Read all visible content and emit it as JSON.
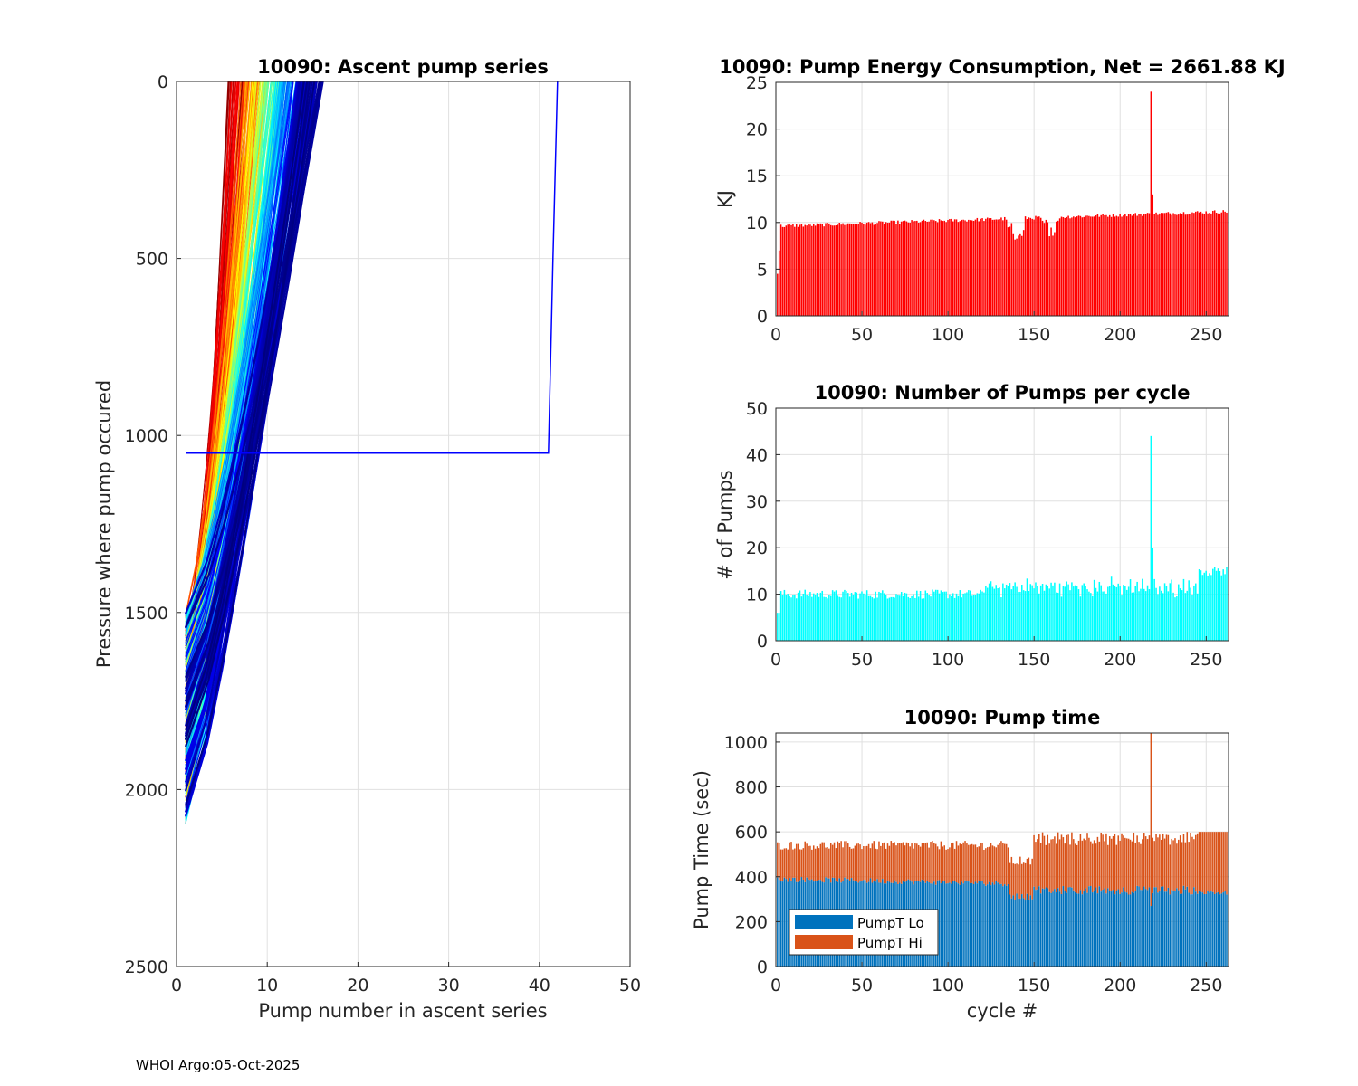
{
  "chart_data": [
    {
      "id": "ascent",
      "type": "line",
      "title": "10090: Ascent pump series",
      "xlabel": "Pump number in ascent series",
      "ylabel": "Pressure where pump occured",
      "xlim": [
        0,
        50
      ],
      "ylim": [
        0,
        2500
      ],
      "y_reversed": true,
      "xticks": [
        0,
        10,
        20,
        30,
        40,
        50
      ],
      "yticks": [
        0,
        500,
        1000,
        1500,
        2000,
        2500
      ],
      "grid": true,
      "series_count": 263,
      "colormap": "jet (by cycle)",
      "outlier_series": {
        "x": [
          1,
          35,
          36,
          41,
          41.5,
          42
        ],
        "y": [
          1050,
          1050,
          1050,
          1050,
          500,
          0
        ]
      }
    },
    {
      "id": "energy",
      "type": "bar",
      "title": "10090: Pump Energy Consumption,  Net = 2661.88 KJ",
      "xlabel": "",
      "ylabel": "KJ",
      "xlim": [
        0,
        263
      ],
      "ylim": [
        0,
        25
      ],
      "xticks": [
        0,
        50,
        100,
        150,
        200,
        250
      ],
      "yticks": [
        0,
        5,
        10,
        15,
        20,
        25
      ],
      "grid": true,
      "color": "#ff0000",
      "net_energy_kj": 2661.88
    },
    {
      "id": "pumps",
      "type": "bar",
      "title": "10090: Number of Pumps per cycle",
      "xlabel": "",
      "ylabel": "# of Pumps",
      "xlim": [
        0,
        263
      ],
      "ylim": [
        0,
        50
      ],
      "xticks": [
        0,
        50,
        100,
        150,
        200,
        250
      ],
      "yticks": [
        0,
        10,
        20,
        30,
        40,
        50
      ],
      "grid": true,
      "color": "#00ffff"
    },
    {
      "id": "pumptime",
      "type": "bar",
      "stacked": true,
      "title": "10090: Pump time",
      "xlabel": "cycle #",
      "ylabel": "Pump Time (sec)",
      "xlim": [
        0,
        263
      ],
      "ylim": [
        0,
        1040
      ],
      "xticks": [
        0,
        50,
        100,
        150,
        200,
        250
      ],
      "yticks": [
        0,
        200,
        400,
        600,
        800,
        1000
      ],
      "grid": true,
      "legend": "bottom-left",
      "series": [
        {
          "name": "PumpT Lo",
          "color": "#0072bd"
        },
        {
          "name": "PumpT Hi",
          "color": "#d95319"
        }
      ]
    }
  ],
  "footer": "WHOI Argo:05-Oct-2025"
}
